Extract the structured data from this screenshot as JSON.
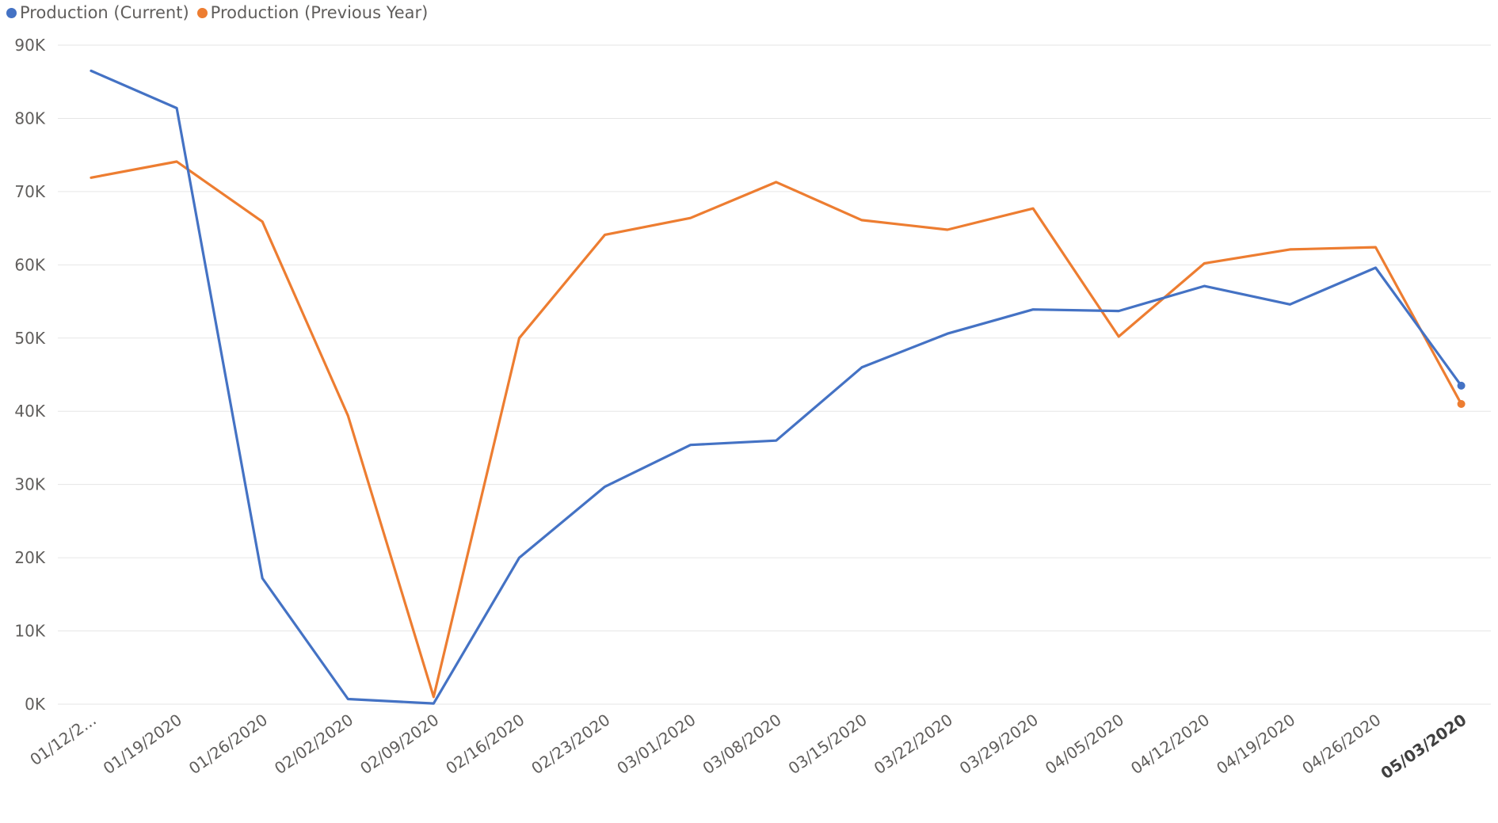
{
  "chart_data": {
    "type": "line",
    "title": "",
    "xlabel": "",
    "ylabel": "",
    "categories": [
      "01/12/2...",
      "01/19/2020",
      "01/26/2020",
      "02/02/2020",
      "02/09/2020",
      "02/16/2020",
      "02/23/2020",
      "03/01/2020",
      "03/08/2020",
      "03/15/2020",
      "03/22/2020",
      "03/29/2020",
      "04/05/2020",
      "04/12/2020",
      "04/19/2020",
      "04/26/2020",
      "05/03/2020"
    ],
    "highlight_category": "05/03/2020",
    "y_ticks": [
      "0K",
      "10K",
      "20K",
      "30K",
      "40K",
      "50K",
      "60K",
      "70K",
      "80K",
      "90K"
    ],
    "ylim": [
      0,
      90000
    ],
    "grid": true,
    "legend_position": "top-left",
    "series": [
      {
        "name": "Production (Current)",
        "color": "#4472c4",
        "values": [
          86500,
          81400,
          17200,
          700,
          100,
          20000,
          29700,
          35400,
          36000,
          46000,
          50600,
          53900,
          53700,
          57100,
          54600,
          59600,
          43500
        ]
      },
      {
        "name": "Production (Previous Year)",
        "color": "#ed7d31",
        "values": [
          71900,
          74100,
          65900,
          39400,
          1000,
          50000,
          64100,
          66400,
          71300,
          66100,
          64800,
          67700,
          50200,
          60200,
          62100,
          62400,
          41000
        ]
      }
    ]
  }
}
